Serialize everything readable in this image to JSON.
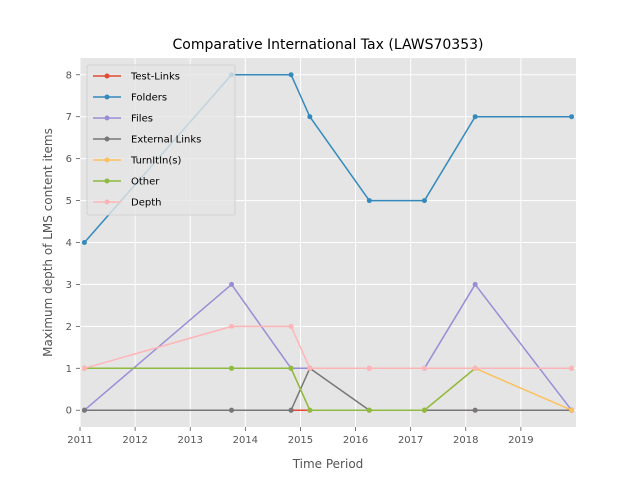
{
  "chart_data": {
    "type": "line",
    "title": "Comparative International Tax (LAWS70353)",
    "xlabel": "Time Period",
    "ylabel": "Maximum depth of LMS content items",
    "xlim": [
      2011.0,
      2020.0
    ],
    "ylim": [
      -0.4,
      8.4
    ],
    "x_ticks": [
      2011,
      2012,
      2013,
      2014,
      2015,
      2016,
      2017,
      2018,
      2019
    ],
    "x_tick_labels": [
      "2011",
      "2012",
      "2013",
      "2014",
      "2015",
      "2016",
      "2017",
      "2018",
      "2019"
    ],
    "y_ticks": [
      0,
      1,
      2,
      3,
      4,
      5,
      6,
      7,
      8
    ],
    "y_tick_labels": [
      "0",
      "1",
      "2",
      "3",
      "4",
      "5",
      "6",
      "7",
      "8"
    ],
    "grid": true,
    "legend_position": "upper-left",
    "x": [
      2011.08,
      2013.75,
      2014.83,
      2015.17,
      2016.25,
      2017.25,
      2018.17,
      2019.92
    ],
    "series": [
      {
        "name": "Test-Links",
        "color": "#E24A33",
        "values": [
          0,
          0,
          0,
          0,
          0,
          0,
          0,
          0
        ]
      },
      {
        "name": "Folders",
        "color": "#348ABD",
        "values": [
          4,
          8,
          8,
          7,
          5,
          5,
          7,
          7
        ]
      },
      {
        "name": "Files",
        "color": "#988ED5",
        "values": [
          0,
          3,
          1,
          1,
          1,
          1,
          3,
          0
        ]
      },
      {
        "name": "External Links",
        "color": "#777777",
        "values": [
          0,
          0,
          0,
          1,
          0,
          0,
          0,
          0
        ]
      },
      {
        "name": "TurnItIn(s)",
        "color": "#FBC15E",
        "values": [
          1,
          1,
          1,
          0,
          0,
          0,
          1,
          0
        ]
      },
      {
        "name": "Other",
        "color": "#8EBA42",
        "values": [
          1,
          1,
          1,
          0,
          0,
          0,
          1,
          1
        ]
      },
      {
        "name": "Depth",
        "color": "#FFB5B8",
        "values": [
          1,
          2,
          2,
          1,
          1,
          1,
          1,
          1
        ]
      }
    ]
  }
}
